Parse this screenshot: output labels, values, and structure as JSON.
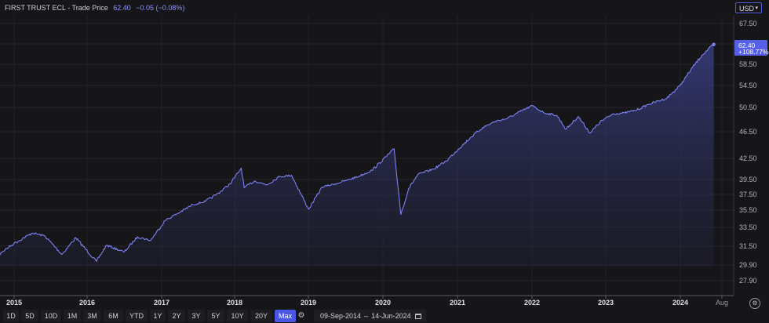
{
  "header": {
    "instrument": "FIRST TRUST ECL",
    "separator": " - ",
    "measure": "Trade Price",
    "last": "62.40",
    "change": "−0.05 (−0.08%)"
  },
  "currency": {
    "label": "USD"
  },
  "price_tag": {
    "value": "62.40",
    "change": "+108.77%"
  },
  "toolbar": {
    "ranges": [
      "1D",
      "5D",
      "10D",
      "1M",
      "3M",
      "6M",
      "YTD",
      "1Y",
      "2Y",
      "3Y",
      "5Y",
      "10Y",
      "20Y",
      "Max"
    ],
    "active": "Max",
    "date_from": "09-Sep-2014",
    "date_sep": "–",
    "date_to": "14-Jun-2024"
  },
  "colors": {
    "line": "#7b83f2",
    "fill_top": "#3e4390",
    "bg": "#161619",
    "accent": "#4a56e6"
  },
  "chart_data": {
    "type": "area",
    "title": "",
    "xlabel": "",
    "ylabel": "",
    "x_ticks": [
      "2015",
      "2016",
      "2017",
      "2018",
      "2019",
      "2020",
      "2021",
      "2022",
      "2023",
      "2024",
      "Aug"
    ],
    "y_ticks": [
      "67.50",
      "62.50",
      "58.50",
      "54.50",
      "50.50",
      "46.50",
      "42.50",
      "39.50",
      "37.50",
      "35.50",
      "33.50",
      "31.50",
      "29.90",
      "27.90"
    ],
    "ylim": [
      27.9,
      67.5
    ],
    "xlim": [
      "2014-09-09",
      "2024-09-05"
    ],
    "grid": true,
    "legend": "none",
    "series": [
      {
        "x": [
          "2014-09-09",
          "2014-11-01",
          "2015-01-01",
          "2015-04-01",
          "2015-06-01",
          "2015-08-25",
          "2015-11-01",
          "2016-02-11",
          "2016-04-01",
          "2016-06-27",
          "2016-09-01",
          "2016-11-04",
          "2017-01-15",
          "2017-04-01",
          "2017-06-01",
          "2017-08-01",
          "2017-10-01",
          "2017-12-01",
          "2018-01-26",
          "2018-02-09",
          "2018-04-01",
          "2018-06-01",
          "2018-08-01",
          "2018-10-01",
          "2018-12-24",
          "2019-03-01",
          "2019-05-01",
          "2019-07-01",
          "2019-09-01",
          "2019-11-01",
          "2020-02-19",
          "2020-03-23",
          "2020-05-01",
          "2020-06-15",
          "2020-09-01",
          "2020-11-01",
          "2021-01-01",
          "2021-03-01",
          "2021-05-01",
          "2021-07-01",
          "2021-09-01",
          "2021-11-01",
          "2021-12-31",
          "2022-03-01",
          "2022-05-01",
          "2022-06-16",
          "2022-08-15",
          "2022-10-13",
          "2022-12-01",
          "2023-02-01",
          "2023-04-01",
          "2023-06-01",
          "2023-07-31",
          "2023-10-27",
          "2023-12-29",
          "2024-03-01",
          "2024-04-17",
          "2024-06-14"
        ],
        "y": [
          29.9,
          31.0,
          31.8,
          32.9,
          32.6,
          30.8,
          32.4,
          30.2,
          31.6,
          31.0,
          32.5,
          32.1,
          34.3,
          35.3,
          36.2,
          36.6,
          37.6,
          38.9,
          41.1,
          38.4,
          39.3,
          38.8,
          39.9,
          40.1,
          35.6,
          38.5,
          38.9,
          39.4,
          40.0,
          40.8,
          43.9,
          35.0,
          38.3,
          40.2,
          41.0,
          42.1,
          43.9,
          45.6,
          47.2,
          48.2,
          48.7,
          49.8,
          50.8,
          49.6,
          49.2,
          46.9,
          49.0,
          46.3,
          48.1,
          49.4,
          49.6,
          50.1,
          51.1,
          52.2,
          54.4,
          57.9,
          60.3,
          62.4
        ]
      }
    ]
  }
}
